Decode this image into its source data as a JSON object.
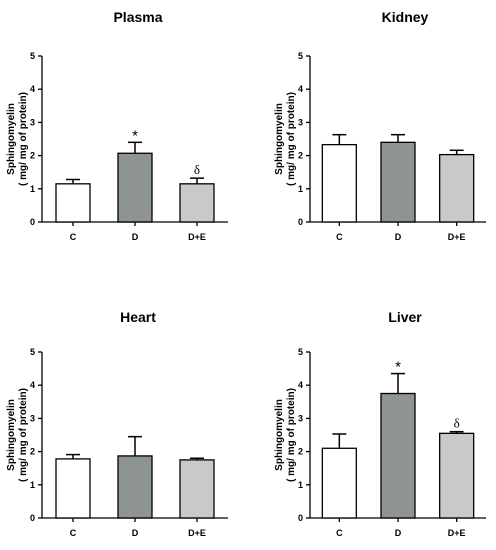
{
  "colors": {
    "C": "#ffffff",
    "D": "#8e9394",
    "D+E": "#c8c9c9",
    "stroke": "#000000"
  },
  "chart_data": [
    {
      "type": "bar",
      "title": "Plasma",
      "ylabel_lines": [
        "Sphingomyelin",
        "( mg/ mg of protein)"
      ],
      "categories": [
        "C",
        "D",
        "D+E"
      ],
      "values": [
        1.15,
        2.07,
        1.15
      ],
      "errors": [
        0.13,
        0.33,
        0.17
      ],
      "annotations": [
        "",
        "*",
        "δ"
      ],
      "ylim": [
        0,
        5
      ],
      "yticks": [
        "0",
        "1",
        "2",
        "3",
        "4",
        "5"
      ]
    },
    {
      "type": "bar",
      "title": "Kidney",
      "ylabel_lines": [
        "Sphingomyelin",
        "( mg/ mg of protein)"
      ],
      "categories": [
        "C",
        "D",
        "D+E"
      ],
      "values": [
        2.33,
        2.4,
        2.03
      ],
      "errors": [
        0.3,
        0.23,
        0.13
      ],
      "annotations": [
        "",
        "",
        ""
      ],
      "ylim": [
        0,
        5
      ],
      "yticks": [
        "0",
        "1",
        "2",
        "3",
        "4",
        "5"
      ]
    },
    {
      "type": "bar",
      "title": "Heart",
      "ylabel_lines": [
        "Sphingomyelin",
        "( mg/ mg of protein)"
      ],
      "categories": [
        "C",
        "D",
        "D+E"
      ],
      "values": [
        1.78,
        1.87,
        1.75
      ],
      "errors": [
        0.13,
        0.58,
        0.05
      ],
      "annotations": [
        "",
        "",
        ""
      ],
      "ylim": [
        0,
        5
      ],
      "yticks": [
        "0",
        "1",
        "2",
        "3",
        "4",
        "5"
      ]
    },
    {
      "type": "bar",
      "title": "Liver",
      "ylabel_lines": [
        "Sphingomyelin",
        "( mg/ mg of protein)"
      ],
      "categories": [
        "C",
        "D",
        "D+E"
      ],
      "values": [
        2.1,
        3.75,
        2.55
      ],
      "errors": [
        0.43,
        0.6,
        0.05
      ],
      "annotations": [
        "",
        "*",
        "δ"
      ],
      "ylim": [
        0,
        5
      ],
      "yticks": [
        "0",
        "1",
        "2",
        "3",
        "4",
        "5"
      ]
    }
  ]
}
